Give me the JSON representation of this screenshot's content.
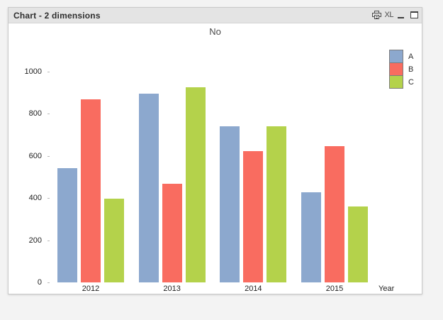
{
  "window": {
    "title": "Chart - 2 dimensions",
    "excel_label": "XL",
    "caption_icons": [
      "print-icon",
      "excel-export-icon",
      "minimize-icon",
      "maximize-icon"
    ],
    "colors": {
      "caption_bg": "#e4e4e4",
      "body_bg": "#ffffff",
      "desktop_bg": "#f3f3f3"
    }
  },
  "chart_data": {
    "type": "bar",
    "title": "No",
    "xlabel": "Year",
    "ylabel": "",
    "categories": [
      "2012",
      "2013",
      "2014",
      "2015"
    ],
    "series": [
      {
        "name": "A",
        "color": "#8CA8CE",
        "values": [
          542,
          896,
          742,
          428
        ]
      },
      {
        "name": "B",
        "color": "#F96C60",
        "values": [
          868,
          468,
          623,
          646
        ]
      },
      {
        "name": "C",
        "color": "#B4D24B",
        "values": [
          397,
          926,
          742,
          360
        ]
      }
    ],
    "ylim": [
      0,
      1000
    ],
    "yticks": [
      0,
      200,
      400,
      600,
      800,
      1000
    ],
    "grid": false,
    "legend_position": "top-right"
  }
}
